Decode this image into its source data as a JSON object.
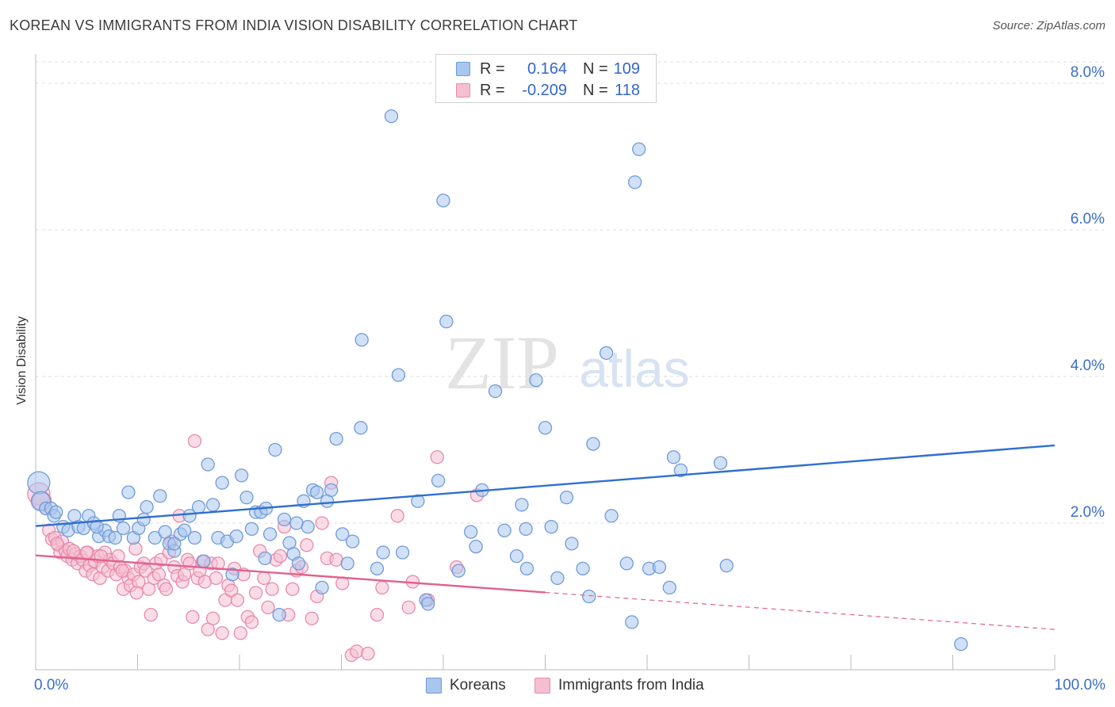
{
  "title": "KOREAN VS IMMIGRANTS FROM INDIA VISION DISABILITY CORRELATION CHART",
  "source": "Source: ZipAtlas.com",
  "watermark": {
    "zip": "ZIP",
    "atlas": "atlas"
  },
  "colors": {
    "koreans_fill": "#a9c6ee",
    "koreans_stroke": "#6f9ad8",
    "koreans_line": "#2f6fd0",
    "india_fill": "#f6bfd1",
    "india_stroke": "#e889aa",
    "india_line": "#e0628e",
    "tick_label": "#3a6fc8",
    "grid": "#dddddd"
  },
  "legend_top": {
    "rows": [
      {
        "r_label": "R =",
        "r_value": "0.164",
        "n_label": "N =",
        "n_value": "109"
      },
      {
        "r_label": "R =",
        "r_value": "-0.209",
        "n_label": "N =",
        "n_value": "118"
      }
    ]
  },
  "legend_bottom": [
    {
      "label": "Koreans"
    },
    {
      "label": "Immigrants from India"
    }
  ],
  "chart_data": {
    "type": "scatter",
    "title": "KOREAN VS IMMIGRANTS FROM INDIA VISION DISABILITY CORRELATION CHART",
    "xlabel": "",
    "ylabel": "Vision Disability",
    "xlim": [
      0,
      100
    ],
    "ylim": [
      0,
      8.4
    ],
    "x_tick_labels": [
      "0.0%",
      "100.0%"
    ],
    "y_ticks": [
      2,
      4,
      6,
      8
    ],
    "y_tick_labels": [
      "2.0%",
      "4.0%",
      "6.0%",
      "8.0%"
    ],
    "grid": true,
    "legend_position": "bottom",
    "series": [
      {
        "name": "Koreans",
        "R": 0.164,
        "N": 109,
        "trend": {
          "x0": 0,
          "y0": 1.96,
          "x1": 100,
          "y1": 3.06,
          "dashed_from": null
        },
        "points": [
          [
            0.3,
            2.55
          ],
          [
            0.5,
            2.3
          ],
          [
            1,
            2.2
          ],
          [
            1.5,
            2.2
          ],
          [
            1.8,
            2.1
          ],
          [
            2,
            2.15
          ],
          [
            2.7,
            1.95
          ],
          [
            3.2,
            1.9
          ],
          [
            3.8,
            2.1
          ],
          [
            4.2,
            1.95
          ],
          [
            4.7,
            1.93
          ],
          [
            5.2,
            2.1
          ],
          [
            5.7,
            2.0
          ],
          [
            6.2,
            1.82
          ],
          [
            6.8,
            1.9
          ],
          [
            7.2,
            1.82
          ],
          [
            7.8,
            1.8
          ],
          [
            8.2,
            2.1
          ],
          [
            8.6,
            1.93
          ],
          [
            9.1,
            2.42
          ],
          [
            9.6,
            1.8
          ],
          [
            10.1,
            1.93
          ],
          [
            10.6,
            2.05
          ],
          [
            10.9,
            2.22
          ],
          [
            11.7,
            1.8
          ],
          [
            12.2,
            2.37
          ],
          [
            12.7,
            1.88
          ],
          [
            13.1,
            1.72
          ],
          [
            13.6,
            1.62
          ],
          [
            14.2,
            1.85
          ],
          [
            14.6,
            1.9
          ],
          [
            15.1,
            2.1
          ],
          [
            15.6,
            1.8
          ],
          [
            16,
            2.22
          ],
          [
            16.5,
            1.48
          ],
          [
            16.9,
            2.8
          ],
          [
            17.4,
            2.25
          ],
          [
            17.9,
            1.8
          ],
          [
            18.3,
            2.55
          ],
          [
            18.8,
            1.75
          ],
          [
            19.3,
            1.3
          ],
          [
            19.7,
            1.82
          ],
          [
            20.2,
            2.65
          ],
          [
            20.7,
            2.35
          ],
          [
            21.2,
            1.92
          ],
          [
            21.6,
            2.15
          ],
          [
            22.1,
            2.15
          ],
          [
            22.5,
            1.52
          ],
          [
            23,
            1.85
          ],
          [
            23.5,
            3.0
          ],
          [
            23.9,
            0.75
          ],
          [
            24.4,
            2.05
          ],
          [
            24.9,
            1.73
          ],
          [
            25.3,
            1.58
          ],
          [
            25.8,
            1.45
          ],
          [
            26.3,
            2.3
          ],
          [
            26.7,
            1.95
          ],
          [
            27.2,
            2.45
          ],
          [
            27.6,
            2.42
          ],
          [
            28.1,
            1.12
          ],
          [
            28.6,
            2.3
          ],
          [
            29,
            2.45
          ],
          [
            29.5,
            3.15
          ],
          [
            30.1,
            1.85
          ],
          [
            30.6,
            1.45
          ],
          [
            31.1,
            1.75
          ],
          [
            31.9,
            3.3
          ],
          [
            32,
            4.5
          ],
          [
            33.5,
            1.38
          ],
          [
            34.1,
            1.6
          ],
          [
            34.9,
            7.55
          ],
          [
            35.6,
            4.02
          ],
          [
            37.5,
            2.3
          ],
          [
            38.3,
            0.95
          ],
          [
            38.5,
            0.9
          ],
          [
            39.5,
            2.58
          ],
          [
            40,
            6.4
          ],
          [
            40.3,
            4.75
          ],
          [
            41.5,
            1.35
          ],
          [
            42.7,
            1.88
          ],
          [
            43.2,
            1.68
          ],
          [
            43.8,
            2.45
          ],
          [
            45.1,
            3.8
          ],
          [
            46,
            1.9
          ],
          [
            47.2,
            1.55
          ],
          [
            47.7,
            2.25
          ],
          [
            48.2,
            1.38
          ],
          [
            49.1,
            3.95
          ],
          [
            50,
            3.3
          ],
          [
            50.6,
            1.95
          ],
          [
            51.2,
            1.25
          ],
          [
            52.1,
            2.35
          ],
          [
            52.6,
            1.72
          ],
          [
            53.7,
            1.38
          ],
          [
            54.3,
            1.0
          ],
          [
            54.7,
            3.08
          ],
          [
            56,
            4.32
          ],
          [
            56.5,
            2.1
          ],
          [
            58,
            1.45
          ],
          [
            58.5,
            0.65
          ],
          [
            58.8,
            6.65
          ],
          [
            59.2,
            7.1
          ],
          [
            60.2,
            1.38
          ],
          [
            61.2,
            1.4
          ],
          [
            62.2,
            1.12
          ],
          [
            62.6,
            2.9
          ],
          [
            63.3,
            2.72
          ],
          [
            67.2,
            2.82
          ],
          [
            67.8,
            1.42
          ],
          [
            90.8,
            0.35
          ],
          [
            6,
            1.95
          ],
          [
            36,
            1.6
          ],
          [
            22.6,
            2.2
          ],
          [
            13.6,
            1.72
          ],
          [
            25.6,
            2.0
          ],
          [
            48.1,
            1.92
          ]
        ]
      },
      {
        "name": "Immigrants from India",
        "R": -0.209,
        "N": 118,
        "trend": {
          "x0": 0,
          "y0": 1.56,
          "x1": 100,
          "y1": 0.55,
          "dashed_from": 50
        },
        "points": [
          [
            0.3,
            2.4
          ],
          [
            0.6,
            2.3
          ],
          [
            1,
            2.2
          ],
          [
            1.3,
            1.9
          ],
          [
            1.6,
            1.78
          ],
          [
            1.9,
            1.8
          ],
          [
            2.2,
            1.7
          ],
          [
            2.4,
            1.6
          ],
          [
            2.6,
            1.75
          ],
          [
            2.9,
            1.62
          ],
          [
            3.1,
            1.55
          ],
          [
            3.3,
            1.65
          ],
          [
            3.6,
            1.5
          ],
          [
            3.9,
            1.58
          ],
          [
            4.1,
            1.45
          ],
          [
            4.4,
            1.55
          ],
          [
            4.6,
            1.5
          ],
          [
            4.9,
            1.35
          ],
          [
            5.1,
            1.6
          ],
          [
            5.3,
            1.42
          ],
          [
            5.6,
            1.3
          ],
          [
            5.8,
            1.48
          ],
          [
            6.1,
            1.55
          ],
          [
            6.3,
            1.25
          ],
          [
            6.6,
            1.4
          ],
          [
            6.8,
            1.6
          ],
          [
            7.1,
            1.35
          ],
          [
            7.3,
            1.5
          ],
          [
            7.6,
            1.45
          ],
          [
            7.9,
            1.3
          ],
          [
            8.1,
            1.55
          ],
          [
            8.3,
            1.4
          ],
          [
            8.6,
            1.1
          ],
          [
            8.8,
            1.35
          ],
          [
            9.1,
            1.25
          ],
          [
            9.3,
            1.15
          ],
          [
            9.6,
            1.3
          ],
          [
            9.8,
            1.65
          ],
          [
            10.1,
            1.2
          ],
          [
            10.3,
            1.4
          ],
          [
            10.6,
            1.45
          ],
          [
            10.8,
            1.35
          ],
          [
            11.1,
            1.1
          ],
          [
            11.3,
            0.75
          ],
          [
            11.6,
            1.25
          ],
          [
            11.8,
            1.45
          ],
          [
            12.1,
            1.3
          ],
          [
            12.3,
            1.5
          ],
          [
            12.6,
            1.15
          ],
          [
            12.8,
            1.1
          ],
          [
            13.1,
            1.6
          ],
          [
            13.3,
            1.75
          ],
          [
            13.6,
            1.4
          ],
          [
            13.9,
            1.28
          ],
          [
            14.1,
            2.1
          ],
          [
            14.4,
            1.2
          ],
          [
            14.6,
            1.3
          ],
          [
            14.9,
            1.5
          ],
          [
            15.1,
            1.45
          ],
          [
            15.4,
            0.72
          ],
          [
            15.6,
            3.12
          ],
          [
            15.9,
            1.25
          ],
          [
            16.1,
            1.35
          ],
          [
            16.4,
            1.48
          ],
          [
            16.6,
            1.2
          ],
          [
            16.9,
            0.55
          ],
          [
            17.2,
            1.45
          ],
          [
            17.4,
            0.7
          ],
          [
            17.7,
            1.25
          ],
          [
            17.9,
            1.45
          ],
          [
            18.3,
            0.5
          ],
          [
            18.6,
            0.95
          ],
          [
            18.9,
            1.15
          ],
          [
            19.2,
            1.08
          ],
          [
            19.5,
            1.38
          ],
          [
            19.8,
            0.95
          ],
          [
            20.1,
            0.5
          ],
          [
            20.4,
            1.3
          ],
          [
            20.8,
            0.72
          ],
          [
            21.2,
            0.65
          ],
          [
            21.6,
            1.05
          ],
          [
            22,
            1.62
          ],
          [
            22.4,
            1.25
          ],
          [
            22.8,
            0.85
          ],
          [
            23.2,
            1.1
          ],
          [
            23.6,
            1.5
          ],
          [
            24,
            1.55
          ],
          [
            24.4,
            1.95
          ],
          [
            24.8,
            0.75
          ],
          [
            25.2,
            1.1
          ],
          [
            25.6,
            1.35
          ],
          [
            26.1,
            1.4
          ],
          [
            26.6,
            1.7
          ],
          [
            27.1,
            0.7
          ],
          [
            27.6,
            1.0
          ],
          [
            28.1,
            2.0
          ],
          [
            28.6,
            1.52
          ],
          [
            29,
            2.55
          ],
          [
            29.5,
            1.5
          ],
          [
            30.1,
            1.18
          ],
          [
            31,
            0.2
          ],
          [
            31.5,
            0.25
          ],
          [
            32.6,
            0.22
          ],
          [
            33.5,
            0.75
          ],
          [
            34,
            1.12
          ],
          [
            35.5,
            2.1
          ],
          [
            36.6,
            0.85
          ],
          [
            37,
            1.2
          ],
          [
            38.5,
            0.95
          ],
          [
            39.4,
            2.9
          ],
          [
            41.3,
            1.4
          ],
          [
            43.3,
            2.38
          ],
          [
            5,
            1.6
          ],
          [
            2.1,
            1.72
          ],
          [
            6.4,
            1.55
          ],
          [
            8.5,
            1.35
          ],
          [
            3.7,
            1.62
          ],
          [
            9.9,
            1.05
          ]
        ]
      }
    ]
  }
}
